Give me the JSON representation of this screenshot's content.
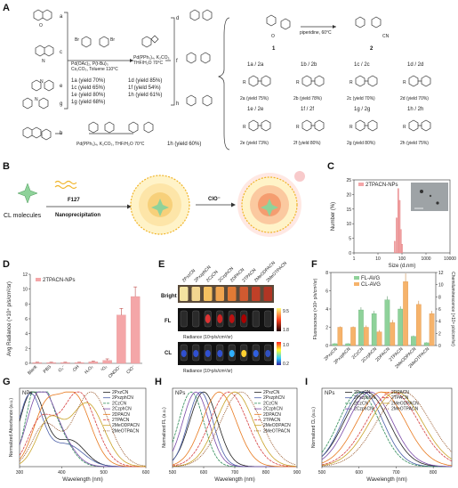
{
  "panels": {
    "A": {
      "letter": "A",
      "reagents_left": "Pd(OAc)₂, P(t-Bu)₃",
      "reagents_left2": "Cs₂CO₃, Toluene 110°C",
      "reagents_right": "Pd(PPh₃)₄, K₂CO₃",
      "reagents_right2": "THF/H₂O 70°C",
      "reagents_bottom": "Pd(PPh₃)₄, K₂CO₃, THF/H₂O 70°C",
      "knoevenagel": "piperidine, 60°C",
      "donor_letters": [
        "a",
        "b",
        "c",
        "d",
        "e",
        "f",
        "g",
        "h"
      ],
      "compound_1": "1",
      "compound_2": "2",
      "yields_left": [
        "1a (yield 70%)",
        "1c (yield 65%)",
        "1e (yield 80%)",
        "1g (yield 68%)"
      ],
      "yields_mid": [
        "1d (yield 85%)",
        "1f (yield 54%)",
        "1h (yield 61%)"
      ],
      "yield_bottom": "1h (yield 60%)",
      "row1_pairs": [
        "1a / 2a",
        "1b / 2b",
        "1c / 2c",
        "1d / 2d"
      ],
      "row1_products": [
        "2a (yield 75%)",
        "2b (yield 78%)",
        "2c (yield 70%)",
        "2d (yield 70%)"
      ],
      "row2_pairs": [
        "1e / 2e",
        "1f / 2f",
        "1g / 2g",
        "1h / 2h"
      ],
      "row2_products": [
        "2e (yield 73%)",
        "2f (yield 80%)",
        "2g (yield 80%)",
        "2h (yield 75%)"
      ]
    },
    "B": {
      "letter": "B",
      "cl_label": "CL molecules",
      "f127": "F127",
      "nanoprecipitation": "Nanoprecipitation",
      "clo": "ClO⁻"
    },
    "C": {
      "letter": "C",
      "legend": "2TPACN-NPs",
      "ylabel": "Number (%)",
      "xlabel": "Size (d.nm)"
    },
    "D": {
      "letter": "D",
      "legend": "2TPACN-NPs",
      "ylabel": "Avg Radiance (×10⁴ p/s/cm²/sr)"
    },
    "E": {
      "letter": "E",
      "samples": [
        "2PxzCN",
        "2PxzphCN",
        "2CzCN",
        "2CzphCN",
        "2DPACN",
        "2TPACN",
        "2MeODPACN",
        "2MeOTPACN"
      ],
      "row_bright": "Bright",
      "row_fl": "FL",
      "row_cl": "CL",
      "fl_scale_max": "9.5",
      "fl_scale_min": "1.8",
      "cl_scale_max": "1.0",
      "cl_scale_min": "0.2",
      "radiance_label": "Radiance (10⁹p/s/cm²/sr)",
      "radiance_label_cl": "Radiance (10⁵p/s/cm²/sr)"
    },
    "F": {
      "letter": "F",
      "legend_fl": "FL-AVG",
      "legend_cl": "CL-AVG",
      "ylabel_left": "Fluorescence (×10⁸ p/s/cm²/sr)",
      "ylabel_right": "Chemiluminescence (×10⁴ p/s/cm²/sr)"
    },
    "G": {
      "letter": "G",
      "nps": "NPs",
      "ylabel": "Normalized Absorbance (a.u.)",
      "xlabel": "Wavelength (nm)"
    },
    "H": {
      "letter": "H",
      "nps": "NPs",
      "ylabel": "Normalized FL (a.u.)",
      "xlabel": "Wavelength (nm)"
    },
    "I": {
      "letter": "I",
      "nps": "NPs",
      "ylabel": "Normalized CL (a.u.)",
      "xlabel": "Wavelength (nm)"
    }
  },
  "colors": {
    "pink": "#f4a6a8",
    "green": "#8fd29a",
    "orange": "#f6b36b",
    "accent_red": "#d9534f"
  },
  "chart_data": [
    {
      "id": "C",
      "type": "bar",
      "x": [
        50,
        60,
        70,
        80,
        90,
        100
      ],
      "values": [
        4,
        12,
        22,
        18,
        8,
        3
      ],
      "xscale": "log",
      "xlim": [
        1,
        10000
      ],
      "ylim": [
        0,
        25
      ],
      "xticks": [
        "1",
        "10",
        "100",
        "1000",
        "10000"
      ],
      "yticks": [
        "0",
        "5",
        "10",
        "15",
        "20",
        "25"
      ],
      "xlabel": "Size (d.nm)",
      "ylabel": "Number (%)",
      "series": [
        {
          "name": "2TPACN-NPs",
          "color": "#f4a6a8"
        }
      ]
    },
    {
      "id": "D",
      "type": "bar",
      "categories": [
        "Blank",
        "PBS",
        "O₂⁻",
        "·OH",
        "H₂O₂",
        "¹O₂",
        "ONOO⁻",
        "ClO⁻"
      ],
      "values": [
        0.1,
        0.1,
        0.1,
        0.1,
        0.2,
        0.4,
        6.5,
        9.0
      ],
      "errors": [
        0.05,
        0.05,
        0.05,
        0.05,
        0.1,
        0.2,
        0.9,
        1.3
      ],
      "ylim": [
        0,
        12
      ],
      "yticks": [
        "0",
        "2",
        "4",
        "6",
        "8",
        "10",
        "12"
      ],
      "ylabel": "Avg Radiance (×10⁴ p/s/cm²/sr)",
      "series": [
        {
          "name": "2TPACN-NPs",
          "color": "#f4a6a8"
        }
      ]
    },
    {
      "id": "F",
      "type": "bar",
      "categories": [
        "2PxzCN",
        "2PxzphCN",
        "2CzCN",
        "2CzphCN",
        "2DPACN",
        "2TPACN",
        "2MeODPACN",
        "2MeOTPACN"
      ],
      "series": [
        {
          "name": "FL-AVG",
          "color": "#8fd29a",
          "values": [
            0.2,
            0.2,
            3.9,
            3.5,
            5.0,
            4.0,
            1.0,
            0.3
          ],
          "errors": [
            0.05,
            0.05,
            0.3,
            0.3,
            0.4,
            0.3,
            0.1,
            0.05
          ]
        },
        {
          "name": "CL-AVG",
          "color": "#f6b36b",
          "values": [
            2.0,
            2.0,
            2.0,
            1.5,
            2.5,
            7.0,
            4.5,
            3.5
          ],
          "errors": [
            0.1,
            0.1,
            0.2,
            0.2,
            0.3,
            0.9,
            0.4,
            0.3
          ]
        }
      ],
      "ylim": [
        0,
        8
      ],
      "yticks": [
        "0",
        "2",
        "4",
        "6",
        "8"
      ],
      "y2lim": [
        0,
        12
      ],
      "y2ticks": [
        "0",
        "2",
        "4",
        "6",
        "8",
        "10",
        "12"
      ],
      "ylabel": "Fluorescence (×10⁸ p/s/cm²/sr)",
      "y2label": "Chemiluminescence (×10⁴ p/s/cm²/sr)"
    },
    {
      "id": "G",
      "type": "line",
      "xlim": [
        300,
        600
      ],
      "xticks": [
        "300",
        "400",
        "500",
        "600"
      ],
      "ylim": [
        0,
        1.05
      ],
      "xlabel": "Wavelength (nm)",
      "ylabel": "Normalized Absorbance (a.u.)",
      "series": [
        {
          "name": "2PxzCN",
          "color": "#1f1f1f",
          "dash": "",
          "peaks": [
            [
              330,
              1.0,
              30
            ],
            [
              420,
              0.35,
              35
            ]
          ]
        },
        {
          "name": "2PxzphCN",
          "color": "#4a5ea8",
          "dash": "",
          "peaks": [
            [
              325,
              0.95,
              28
            ],
            [
              410,
              0.3,
              40
            ]
          ]
        },
        {
          "name": "2CzCN",
          "color": "#2e8b57",
          "dash": "3 1",
          "peaks": [
            [
              340,
              0.9,
              25
            ],
            [
              380,
              0.55,
              35
            ]
          ]
        },
        {
          "name": "2CzphCN",
          "color": "#7a4aa8",
          "dash": "",
          "peaks": [
            [
              345,
              0.85,
              30
            ],
            [
              390,
              0.4,
              35
            ]
          ]
        },
        {
          "name": "2DPACN",
          "color": "#e87a1f",
          "dash": "",
          "peaks": [
            [
              360,
              0.7,
              30
            ],
            [
              430,
              0.95,
              38
            ]
          ]
        },
        {
          "name": "2TPACN",
          "color": "#d63f3f",
          "dash": "3 1",
          "peaks": [
            [
              350,
              0.6,
              30
            ],
            [
              440,
              1.0,
              40
            ]
          ]
        },
        {
          "name": "2MeODPACN",
          "color": "#c9a227",
          "dash": "",
          "peaks": [
            [
              370,
              0.6,
              30
            ],
            [
              460,
              0.85,
              40
            ]
          ]
        },
        {
          "name": "2MeOTPACN",
          "color": "#8b4513",
          "dash": "1 1",
          "peaks": [
            [
              360,
              0.55,
              30
            ],
            [
              470,
              1.0,
              42
            ]
          ]
        }
      ]
    },
    {
      "id": "H",
      "type": "line",
      "xlim": [
        500,
        900
      ],
      "xticks": [
        "500",
        "600",
        "700",
        "800",
        "900"
      ],
      "ylim": [
        0,
        1.05
      ],
      "xlabel": "Wavelength (nm)",
      "ylabel": "Normalized FL (a.u.)",
      "series": [
        {
          "name": "2PxzCN",
          "color": "#1f1f1f",
          "dash": "",
          "peaks": [
            [
              600,
              1.0,
              45
            ]
          ]
        },
        {
          "name": "2PxzphCN",
          "color": "#4a5ea8",
          "dash": "",
          "peaks": [
            [
              590,
              1.0,
              40
            ]
          ]
        },
        {
          "name": "2CzCN",
          "color": "#2e8b57",
          "dash": "3 1",
          "peaks": [
            [
              560,
              1.0,
              40
            ]
          ]
        },
        {
          "name": "2CzphCN",
          "color": "#7a4aa8",
          "dash": "",
          "peaks": [
            [
              575,
              1.0,
              42
            ]
          ]
        },
        {
          "name": "2DPACN",
          "color": "#e87a1f",
          "dash": "",
          "peaks": [
            [
              650,
              1.0,
              55
            ]
          ]
        },
        {
          "name": "2TPACN",
          "color": "#d63f3f",
          "dash": "3 1",
          "peaks": [
            [
              680,
              1.0,
              60
            ]
          ]
        },
        {
          "name": "2MeODPACN",
          "color": "#c9a227",
          "dash": "",
          "peaks": [
            [
              700,
              1.0,
              60
            ]
          ]
        },
        {
          "name": "2MeOTPACN",
          "color": "#8b4513",
          "dash": "1 1",
          "peaks": [
            [
              720,
              1.0,
              65
            ]
          ]
        }
      ]
    },
    {
      "id": "I",
      "type": "line",
      "xlim": [
        500,
        850
      ],
      "xticks": [
        "500",
        "600",
        "700",
        "800"
      ],
      "ylim": [
        0,
        1.05
      ],
      "xlabel": "Wavelength (nm)",
      "ylabel": "Normalized CL (a.u.)",
      "series": [
        {
          "name": "2PxzCN",
          "color": "#1f1f1f",
          "dash": "",
          "peaks": [
            [
              620,
              1.0,
              60
            ]
          ]
        },
        {
          "name": "2PxzphCN",
          "color": "#4a5ea8",
          "dash": "",
          "peaks": [
            [
              610,
              1.0,
              55
            ]
          ]
        },
        {
          "name": "2CzCN",
          "color": "#2e8b57",
          "dash": "3 1",
          "peaks": [
            [
              600,
              1.0,
              55
            ]
          ]
        },
        {
          "name": "2CzphCN",
          "color": "#7a4aa8",
          "dash": "",
          "peaks": [
            [
              630,
              1.0,
              60
            ]
          ]
        },
        {
          "name": "2DPACN",
          "color": "#e87a1f",
          "dash": "",
          "peaks": [
            [
              660,
              1.0,
              65
            ]
          ]
        },
        {
          "name": "2TPACN",
          "color": "#d63f3f",
          "dash": "3 1",
          "peaks": [
            [
              690,
              1.0,
              70
            ]
          ]
        },
        {
          "name": "2MeODPACN",
          "color": "#c9a227",
          "dash": "",
          "peaks": [
            [
              700,
              1.0,
              70
            ]
          ]
        },
        {
          "name": "2MeOTPACN",
          "color": "#8b4513",
          "dash": "1 1",
          "peaks": [
            [
              720,
              1.0,
              72
            ]
          ]
        }
      ]
    }
  ]
}
